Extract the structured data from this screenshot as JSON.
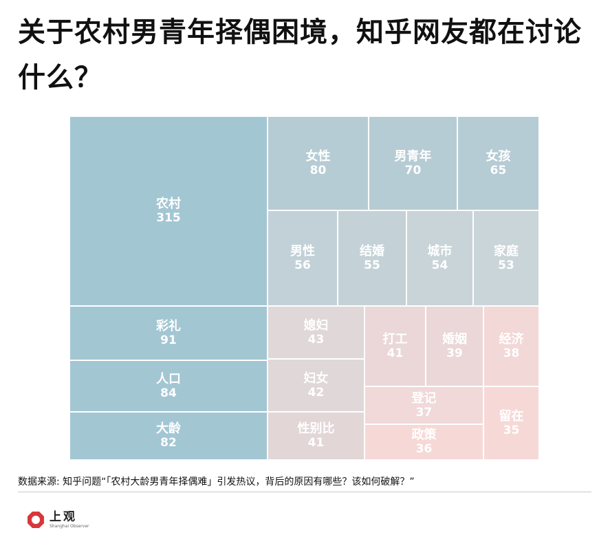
{
  "title": "关于农村男青年择偶困境，知乎网友都在讨论什么？",
  "chart_data": {
    "type": "treemap",
    "title": "关于农村男青年择偶困境，知乎网友都在讨论什么？",
    "items": [
      {
        "label": "农村",
        "value": 315,
        "color": "#a3c6d3"
      },
      {
        "label": "彩礼",
        "value": 91,
        "color": "#a3c6d3"
      },
      {
        "label": "人口",
        "value": 84,
        "color": "#a3c6d3"
      },
      {
        "label": "大龄",
        "value": 82,
        "color": "#a3c6d3"
      },
      {
        "label": "女性",
        "value": 80,
        "color": "#b6ccd4"
      },
      {
        "label": "男青年",
        "value": 70,
        "color": "#b6ccd4"
      },
      {
        "label": "女孩",
        "value": 65,
        "color": "#b6ccd4"
      },
      {
        "label": "男性",
        "value": 56,
        "color": "#c1d1d7"
      },
      {
        "label": "结婚",
        "value": 55,
        "color": "#c4d2d7"
      },
      {
        "label": "城市",
        "value": 54,
        "color": "#c8d4d8"
      },
      {
        "label": "家庭",
        "value": 53,
        "color": "#cad5d9"
      },
      {
        "label": "媳妇",
        "value": 43,
        "color": "#e0d7d8"
      },
      {
        "label": "妇女",
        "value": 42,
        "color": "#e0d7d8"
      },
      {
        "label": "性别比",
        "value": 41,
        "color": "#e2d6d7"
      },
      {
        "label": "打工",
        "value": 41,
        "color": "#ebd7d7"
      },
      {
        "label": "婚姻",
        "value": 39,
        "color": "#ebd7d7"
      },
      {
        "label": "经济",
        "value": 38,
        "color": "#f2d8d6"
      },
      {
        "label": "登记",
        "value": 37,
        "color": "#f0d9d8"
      },
      {
        "label": "政策",
        "value": 36,
        "color": "#f6d9d7"
      },
      {
        "label": "留在",
        "value": 35,
        "color": "#f6d9d7"
      }
    ]
  },
  "source": "数据来源: 知乎问题“「农村大龄男青年择偶难」引发热议，背后的原因有哪些？该如何破解？”",
  "logo": {
    "text_cn": "上观",
    "text_en": "Shanghai Observer",
    "color": "#d8373a"
  }
}
